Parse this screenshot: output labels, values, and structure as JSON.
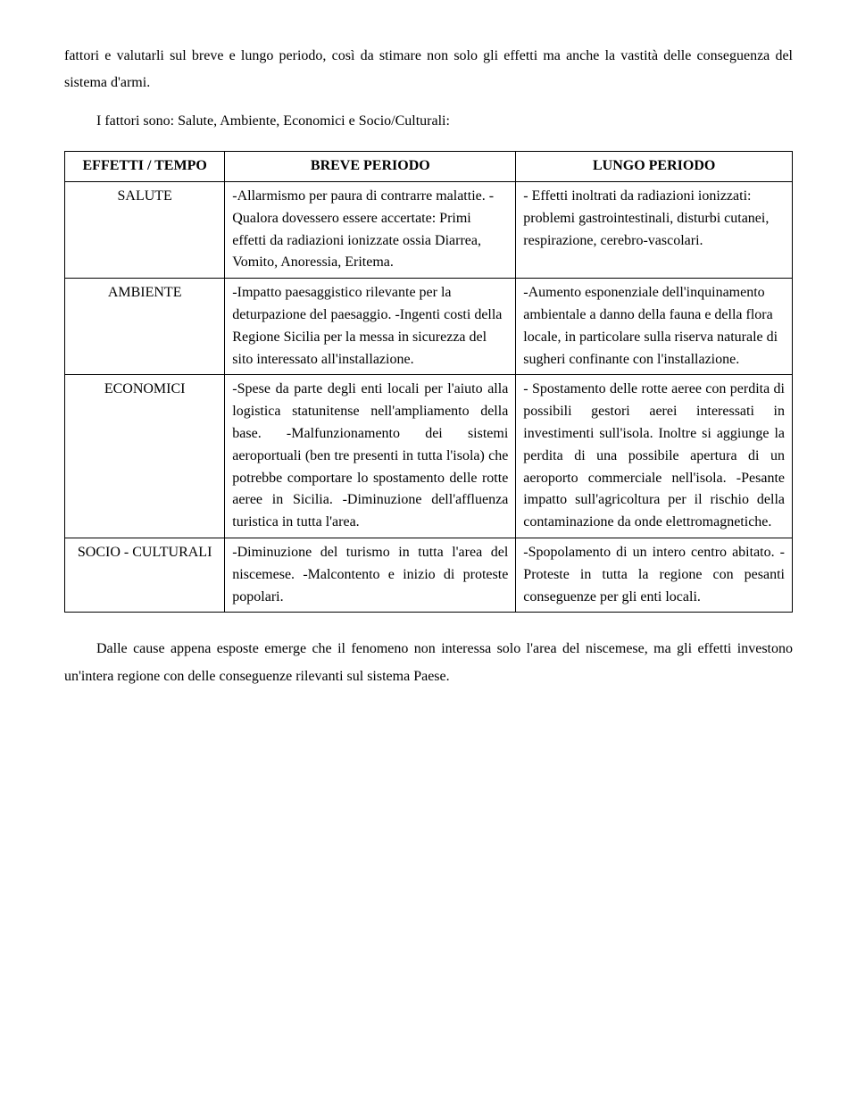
{
  "intro": {
    "p1": "fattori e valutarli sul breve e lungo periodo, così da stimare non solo gli effetti ma anche la vastità delle conseguenza del sistema d'armi.",
    "p2": "I fattori sono: Salute, Ambiente, Economici e Socio/Culturali:"
  },
  "table": {
    "headers": [
      "EFFETTI / TEMPO",
      "BREVE PERIODO",
      "LUNGO PERIODO"
    ],
    "rows": [
      {
        "label": "SALUTE",
        "breve": "-Allarmismo per paura di contrarre malattie.\n-Qualora dovessero essere accertate: Primi effetti da radiazioni ionizzate ossia Diarrea, Vomito, Anoressia, Eritema.",
        "lungo": "- Effetti inoltrati da radiazioni ionizzati: problemi gastrointestinali, disturbi cutanei, respirazione, cerebro-vascolari."
      },
      {
        "label": "AMBIENTE",
        "breve": "-Impatto paesaggistico rilevante per la deturpazione del paesaggio.\n-Ingenti costi della Regione Sicilia per la messa in sicurezza del sito interessato all'installazione.",
        "lungo": "-Aumento esponenziale dell'inquinamento ambientale a danno della fauna e della flora locale, in particolare sulla riserva naturale di sugheri confinante con l'installazione."
      },
      {
        "label": "ECONOMICI",
        "breve": "-Spese da parte degli enti locali per l'aiuto alla logistica statunitense nell'ampliamento della base.\n-Malfunzionamento dei sistemi aeroportuali (ben tre presenti in tutta l'isola) che potrebbe comportare lo spostamento delle rotte aeree in Sicilia.\n-Diminuzione dell'affluenza turistica in tutta l'area.",
        "lungo": "- Spostamento delle rotte aeree con perdita di possibili gestori aerei interessati in investimenti sull'isola. Inoltre si aggiunge la perdita di una possibile apertura di un aeroporto commerciale nell'isola.\n-Pesante impatto sull'agricoltura per il rischio della contaminazione da onde elettromagnetiche."
      },
      {
        "label": "SOCIO - CULTURALI",
        "breve": "-Diminuzione del turismo in tutta l'area del niscemese.\n-Malcontento e inizio di proteste popolari.",
        "lungo": "-Spopolamento di un intero centro abitato.\n-Proteste in tutta la regione con pesanti conseguenze per gli enti locali."
      }
    ]
  },
  "outro": {
    "p1": "Dalle cause appena esposte emerge che il fenomeno non interessa solo l'area del niscemese, ma gli effetti investono un'intera regione con delle conseguenze rilevanti sul sistema Paese."
  }
}
